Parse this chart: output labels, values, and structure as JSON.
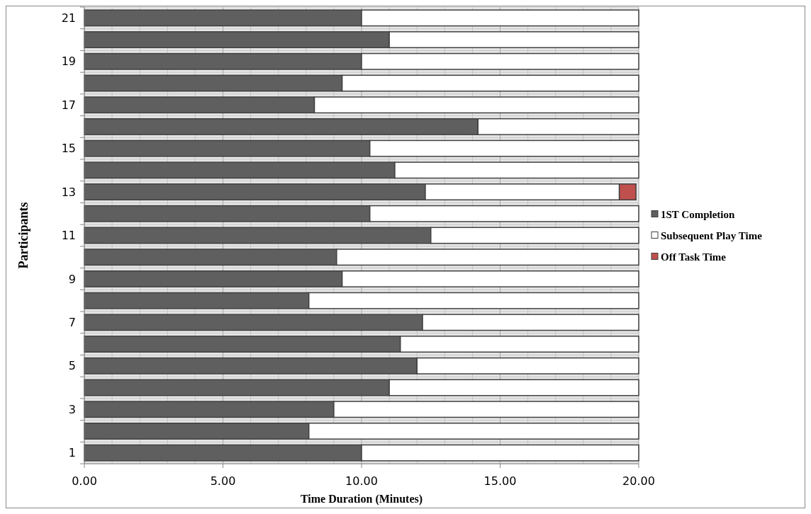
{
  "chart_data": {
    "type": "bar",
    "orientation": "horizontal",
    "stacked": true,
    "xlabel": "Time Duration (Minutes)",
    "ylabel": "Participants",
    "categories": [
      "21",
      null,
      "19",
      null,
      "17",
      null,
      "15",
      null,
      "13",
      null,
      "11",
      null,
      "9",
      null,
      "7",
      null,
      "5",
      null,
      "3",
      null,
      "1"
    ],
    "series": [
      {
        "name": "1ST Completion",
        "color": "#5f5f5f",
        "values": [
          10.0,
          11.0,
          10.0,
          9.3,
          8.3,
          14.2,
          10.3,
          11.2,
          12.3,
          10.3,
          12.5,
          9.1,
          9.3,
          8.1,
          12.2,
          11.4,
          12.0,
          11.0,
          9.0,
          8.1,
          10.0
        ]
      },
      {
        "name": "Subsequent Play Time",
        "color": "#ffffff",
        "values": [
          10.0,
          9.0,
          10.0,
          10.7,
          11.7,
          5.8,
          9.7,
          8.8,
          7.0,
          9.7,
          7.5,
          10.9,
          10.7,
          11.9,
          7.8,
          8.6,
          8.0,
          9.0,
          11.0,
          11.9,
          10.0
        ]
      },
      {
        "name": "Off Task Time",
        "color": "#c0504d",
        "values": [
          null,
          null,
          null,
          null,
          null,
          null,
          null,
          null,
          0.6,
          null,
          null,
          null,
          null,
          null,
          null,
          null,
          null,
          null,
          null,
          null,
          null
        ]
      }
    ],
    "xlim": [
      0,
      20
    ],
    "xticks": [
      {
        "value": 0,
        "label": "0.00"
      },
      {
        "value": 1,
        "label": null
      },
      {
        "value": 2,
        "label": null
      },
      {
        "value": 3,
        "label": null
      },
      {
        "value": 4,
        "label": null
      },
      {
        "value": 5,
        "label": "5.00"
      },
      {
        "value": 6,
        "label": null
      },
      {
        "value": 7,
        "label": null
      },
      {
        "value": 8,
        "label": null
      },
      {
        "value": 9,
        "label": null
      },
      {
        "value": 10,
        "label": "10.00"
      },
      {
        "value": 11,
        "label": null
      },
      {
        "value": 12,
        "label": null
      },
      {
        "value": 13,
        "label": null
      },
      {
        "value": 14,
        "label": null
      },
      {
        "value": 15,
        "label": "15.00"
      },
      {
        "value": 16,
        "label": null
      },
      {
        "value": 17,
        "label": null
      },
      {
        "value": 18,
        "label": null
      },
      {
        "value": 19,
        "label": null
      },
      {
        "value": 20,
        "label": "20.00"
      }
    ],
    "grid": true,
    "legend": "right"
  }
}
